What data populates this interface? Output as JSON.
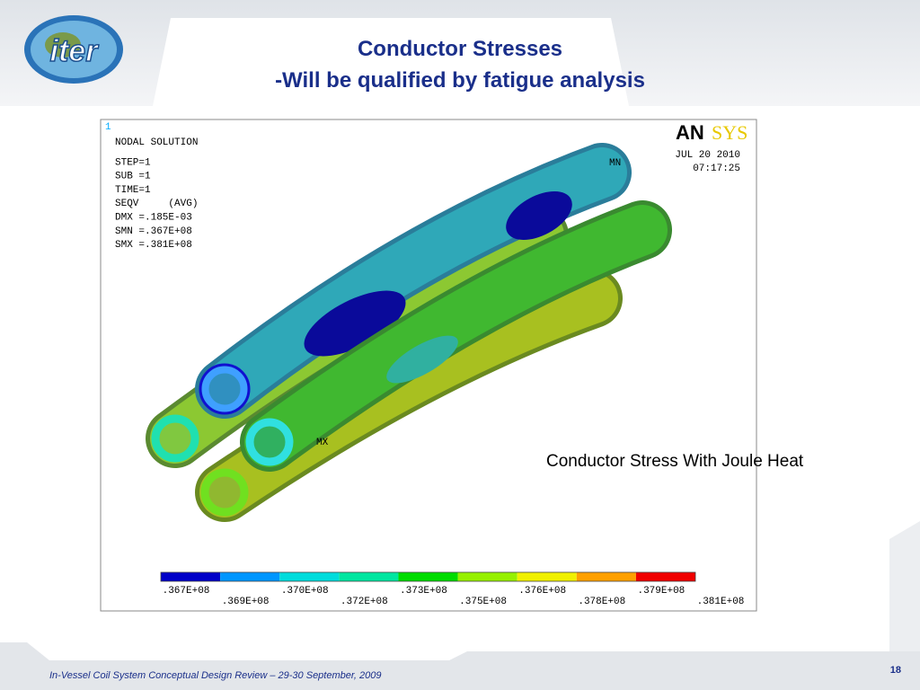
{
  "header": {
    "title_line1": "Conductor Stresses",
    "title_line2": "-Will be qualified by fatigue analysis"
  },
  "figure": {
    "window_number": "1",
    "info": [
      "NODAL SOLUTION",
      "STEP=1",
      "SUB =1",
      "TIME=1",
      "SEQV     (AVG)",
      "DMX =.185E-03",
      "SMN =.367E+08",
      "SMX =.381E+08"
    ],
    "logo_an": "AN",
    "logo_sys": "SYS",
    "date": "JUL 20 2010",
    "time": "07:17:25",
    "mn_label": "MN",
    "mx_label": "MX",
    "legend": {
      "colors": [
        "#0000c8",
        "#0096ff",
        "#00dcdc",
        "#00e6a0",
        "#00dc00",
        "#96f000",
        "#f0f000",
        "#ffa000",
        "#f00000"
      ],
      "labels_top": [
        ".367E+08",
        ".370E+08",
        ".373E+08",
        ".376E+08",
        ".379E+08"
      ],
      "labels_bottom": [
        ".369E+08",
        ".372E+08",
        ".375E+08",
        ".378E+08",
        ".381E+08"
      ]
    }
  },
  "caption": "Conductor Stress With Joule Heat",
  "footer": {
    "text": "In-Vessel Coil System Conceptual Design Review – 29-30 September, 2009",
    "page": "18"
  }
}
